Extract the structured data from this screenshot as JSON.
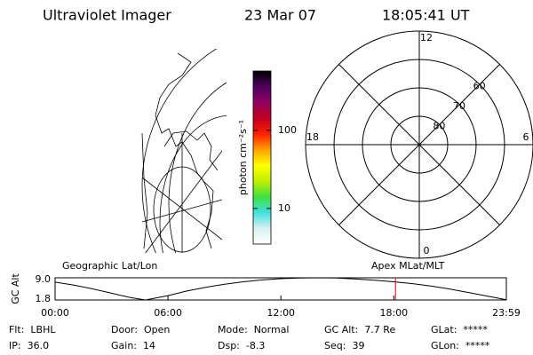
{
  "header": {
    "title": "Ultraviolet Imager",
    "date": "23 Mar 07",
    "time": "18:05:41 UT"
  },
  "map_label": "Geographic Lat/Lon",
  "colorbar": {
    "label": "photon cm⁻²s⁻¹",
    "log": true,
    "ylim": [
      3.5,
      575
    ],
    "yticks": [
      10,
      100
    ],
    "colors": [
      "#ffffff",
      "#d8f0f0",
      "#40e0e0",
      "#40e040",
      "#c0f000",
      "#ffff00",
      "#ffa000",
      "#ff2000",
      "#c00020",
      "#900060",
      "#500060",
      "#000000"
    ]
  },
  "polar": {
    "label": "Apex MLat/MLT",
    "rlim": [
      90,
      50
    ],
    "rings": [
      80,
      70,
      60
    ],
    "hour_labels": [
      {
        "value": 12,
        "label": "12"
      },
      {
        "value": 18,
        "label": "18"
      },
      {
        "value": 6,
        "label": "6"
      },
      {
        "value": 0,
        "label": "0"
      }
    ],
    "spokes": [
      0,
      3,
      6,
      9,
      12,
      15,
      18,
      21
    ]
  },
  "chart_data": {
    "type": "line",
    "ylabel": "GC Alt",
    "x": [
      0,
      1,
      2,
      3,
      4,
      4.8,
      6,
      7,
      8,
      9,
      10,
      11,
      12,
      13,
      14,
      15,
      16,
      17,
      18,
      19,
      20,
      21,
      22,
      23,
      23.98
    ],
    "values": [
      7.6,
      6.6,
      5.4,
      4.0,
      2.6,
      1.8,
      3.2,
      4.7,
      5.9,
      6.9,
      7.7,
      8.3,
      8.7,
      8.95,
      9.0,
      8.9,
      8.6,
      8.2,
      7.7,
      7.1,
      6.3,
      5.3,
      4.2,
      3.0,
      1.9
    ],
    "color": "#000000",
    "xlim": [
      0,
      23.98
    ],
    "xticks": [
      {
        "value": 0,
        "label": "00:00"
      },
      {
        "value": 6,
        "label": "06:00"
      },
      {
        "value": 12,
        "label": "12:00"
      },
      {
        "value": 18,
        "label": "18:00"
      },
      {
        "value": 23.98,
        "label": "23:59"
      }
    ],
    "ylim": [
      1.8,
      9.0
    ],
    "yticks": [
      {
        "value": 9.0,
        "label": "9.0"
      },
      {
        "value": 1.8,
        "label": "1.8"
      }
    ],
    "marker_x": 18.09,
    "marker_color": "#e00000"
  },
  "footer": [
    [
      {
        "label": "Flt:",
        "value": "LBHL"
      },
      {
        "label": "Door:",
        "value": "Open"
      },
      {
        "label": "Mode:",
        "value": "Normal"
      },
      {
        "label": "GC Alt:",
        "value": "7.7 Re"
      },
      {
        "label": "GLat:",
        "value": "*****"
      }
    ],
    [
      {
        "label": "IP:",
        "value": "36.0"
      },
      {
        "label": "Gain:",
        "value": "14"
      },
      {
        "label": "Dsp:",
        "value": "-8.3"
      },
      {
        "label": "Seq:",
        "value": "39"
      },
      {
        "label": "GLon:",
        "value": "*****"
      }
    ]
  ]
}
